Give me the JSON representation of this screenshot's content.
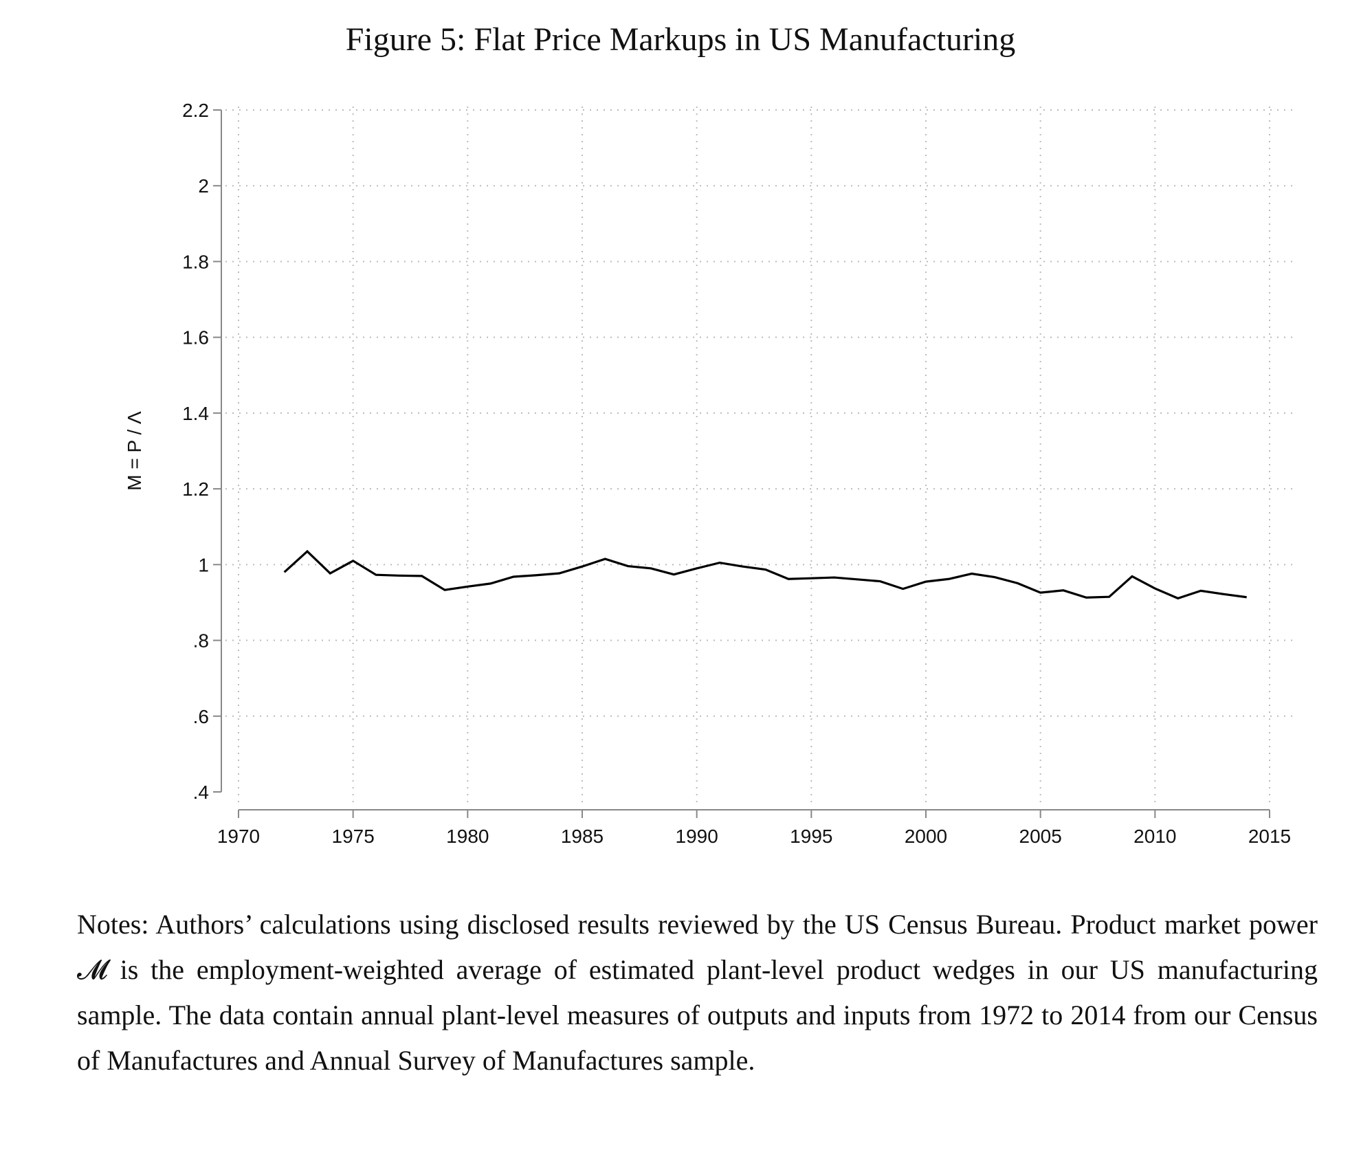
{
  "title": "Figure 5: Flat Price Markups in US Manufacturing",
  "notes": "Notes: Authors’ calculations using disclosed results reviewed by the US Census Bureau. Product market power 𝓜 is the employment-weighted average of estimated plant-level product wedges in our US manufacturing sample. The data contain annual plant-level measures of outputs and inputs from 1972 to 2014 from our Census of Manufactures and Annual Survey of Manufactures sample.",
  "chart_data": {
    "type": "line",
    "title": "Figure 5: Flat Price Markups in US Manufacturing",
    "xlabel": "",
    "ylabel": "M = P / Λ",
    "xlim": [
      1970,
      2015
    ],
    "ylim": [
      0.4,
      2.2
    ],
    "xticks": [
      1970,
      1975,
      1980,
      1985,
      1990,
      1995,
      2000,
      2005,
      2010,
      2015
    ],
    "yticks": [
      0.4,
      0.6,
      0.8,
      1,
      1.2,
      1.4,
      1.6,
      1.8,
      2,
      2.2
    ],
    "ytick_labels": [
      ".4",
      ".6",
      ".8",
      "1",
      "1.2",
      "1.4",
      "1.6",
      "1.8",
      "2",
      "2.2"
    ],
    "grid": true,
    "series": [
      {
        "name": "Markup",
        "color": "#000000",
        "x": [
          1972,
          1973,
          1974,
          1975,
          1976,
          1977,
          1978,
          1979,
          1980,
          1981,
          1982,
          1983,
          1984,
          1985,
          1986,
          1987,
          1988,
          1989,
          1990,
          1991,
          1992,
          1993,
          1994,
          1995,
          1996,
          1997,
          1998,
          1999,
          2000,
          2001,
          2002,
          2003,
          2004,
          2005,
          2006,
          2007,
          2008,
          2009,
          2010,
          2011,
          2012,
          2013,
          2014
        ],
        "y": [
          0.98,
          1.035,
          0.977,
          1.01,
          0.973,
          0.971,
          0.97,
          0.933,
          0.942,
          0.95,
          0.968,
          0.972,
          0.977,
          0.995,
          1.015,
          0.996,
          0.99,
          0.974,
          0.99,
          1.005,
          0.995,
          0.987,
          0.962,
          0.964,
          0.966,
          0.961,
          0.956,
          0.936,
          0.955,
          0.962,
          0.976,
          0.967,
          0.951,
          0.926,
          0.932,
          0.913,
          0.915,
          0.969,
          0.937,
          0.911,
          0.931,
          0.922,
          0.914
        ]
      }
    ]
  }
}
